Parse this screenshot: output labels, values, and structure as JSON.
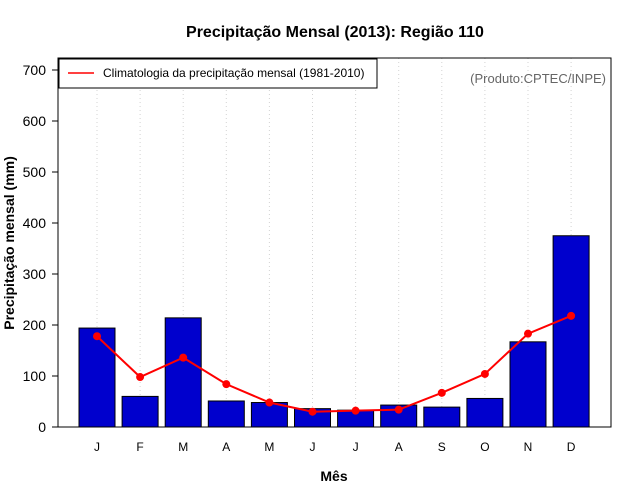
{
  "chart_data": {
    "type": "bar",
    "title": "Precipitação Mensal (2013): Região 110",
    "xlabel": "Mês",
    "ylabel": "Precipitação mensal (mm)",
    "ylim": [
      0,
      700
    ],
    "yticks": [
      0,
      100,
      200,
      300,
      400,
      500,
      600,
      700
    ],
    "categories": [
      "J",
      "F",
      "M",
      "A",
      "M",
      "J",
      "J",
      "A",
      "S",
      "O",
      "N",
      "D"
    ],
    "series": [
      {
        "name": "Precipitação mensal 2013",
        "type": "bar",
        "color": "#0000cd",
        "values": [
          194,
          60,
          214,
          51,
          48,
          36,
          33,
          43,
          39,
          56,
          167,
          375
        ]
      },
      {
        "name": "Climatologia da precipitação mensal (1981-2010)",
        "type": "line",
        "color": "#ff0000",
        "values": [
          178,
          98,
          136,
          84,
          48,
          30,
          32,
          34,
          67,
          104,
          183,
          218
        ]
      }
    ],
    "grid": "vertical-dotted",
    "legend": {
      "position": "top-left",
      "label": "Climatologia da precipitação mensal (1981-2010)"
    },
    "credit": "(Produto:CPTEC/INPE)"
  }
}
